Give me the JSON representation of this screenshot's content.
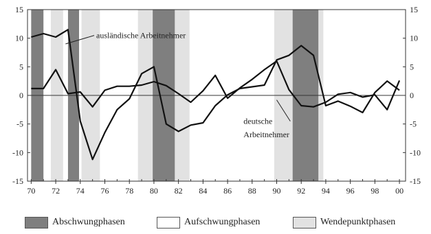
{
  "chart_data": {
    "type": "line",
    "x": [
      1970,
      1971,
      1972,
      1973,
      1974,
      1975,
      1976,
      1977,
      1978,
      1979,
      1980,
      1981,
      1982,
      1983,
      1984,
      1985,
      1986,
      1987,
      1988,
      1989,
      1990,
      1991,
      1992,
      1993,
      1994,
      1995,
      1996,
      1997,
      1998,
      1999,
      2000
    ],
    "xticks": [
      "70",
      "72",
      "74",
      "76",
      "78",
      "80",
      "82",
      "84",
      "86",
      "88",
      "90",
      "92",
      "94",
      "96",
      "98",
      "00"
    ],
    "xtick_values": [
      1970,
      1972,
      1974,
      1976,
      1978,
      1980,
      1982,
      1984,
      1986,
      1988,
      1990,
      1992,
      1994,
      1996,
      1998,
      2000
    ],
    "yticks": [
      "15",
      "10",
      "5",
      "0",
      "-5",
      "-10",
      "-15"
    ],
    "ytick_values": [
      15,
      10,
      5,
      0,
      -5,
      -10,
      -15
    ],
    "xlim": [
      1969.7,
      2000.5
    ],
    "ylim": [
      -15,
      15
    ],
    "zero_line": true,
    "series": [
      {
        "name": "ausländische Arbeitnehmer",
        "values": [
          10.2,
          10.8,
          10.2,
          11.5,
          -4.5,
          -11.2,
          -6.5,
          -2.5,
          -0.6,
          3.8,
          5.0,
          -5.0,
          -6.3,
          -5.2,
          -4.8,
          -1.8,
          0.1,
          1.2,
          1.5,
          1.8,
          6.2,
          7.0,
          8.7,
          7.0,
          -1.8,
          -1.0,
          -1.9,
          -3.0,
          0.5,
          2.5,
          0.9
        ],
        "color": "#111111"
      },
      {
        "name": "deutsche Arbeitnehmer",
        "values": [
          1.2,
          1.2,
          4.5,
          0.3,
          0.6,
          -2.0,
          0.9,
          1.6,
          1.6,
          1.8,
          2.4,
          1.7,
          0.3,
          -1.2,
          0.8,
          3.5,
          -0.5,
          1.3,
          2.8,
          4.5,
          6.0,
          1.0,
          -1.8,
          -2.0,
          -1.2,
          0.2,
          0.5,
          -0.3,
          0.1,
          -2.5,
          2.6
        ],
        "color": "#111111"
      }
    ],
    "annotations": [
      {
        "text": "ausländische Arbeitnehmer",
        "x": 1975.3,
        "y": 10.0,
        "arrow_to": [
          1972.8,
          9.0
        ]
      },
      {
        "text": "deutsche",
        "x": 1987.3,
        "y": -5.0,
        "arrow_to": [
          1990.0,
          -0.8
        ]
      },
      {
        "text": "Arbeitnehmer",
        "x": 1987.3,
        "y": -7.3
      }
    ],
    "phases": {
      "abschwung": [
        [
          1970.0,
          1971.0
        ],
        [
          1973.0,
          1973.9
        ],
        [
          1979.9,
          1981.7
        ],
        [
          1991.3,
          1993.4
        ]
      ],
      "wendepunkt": [
        [
          1971.6,
          1972.6
        ],
        [
          1974.1,
          1975.6
        ],
        [
          1978.7,
          1979.9
        ],
        [
          1981.7,
          1982.9
        ],
        [
          1989.8,
          1991.3
        ],
        [
          1993.4,
          1993.8
        ]
      ]
    },
    "legend": {
      "position": "bottom",
      "items": [
        {
          "label": "Abschwungphasen",
          "color": "#7f7f7f"
        },
        {
          "label": "Aufschwungphasen",
          "color": "#ffffff"
        },
        {
          "label": "Wendepunktphasen",
          "color": "#e2e2e2"
        }
      ]
    }
  }
}
